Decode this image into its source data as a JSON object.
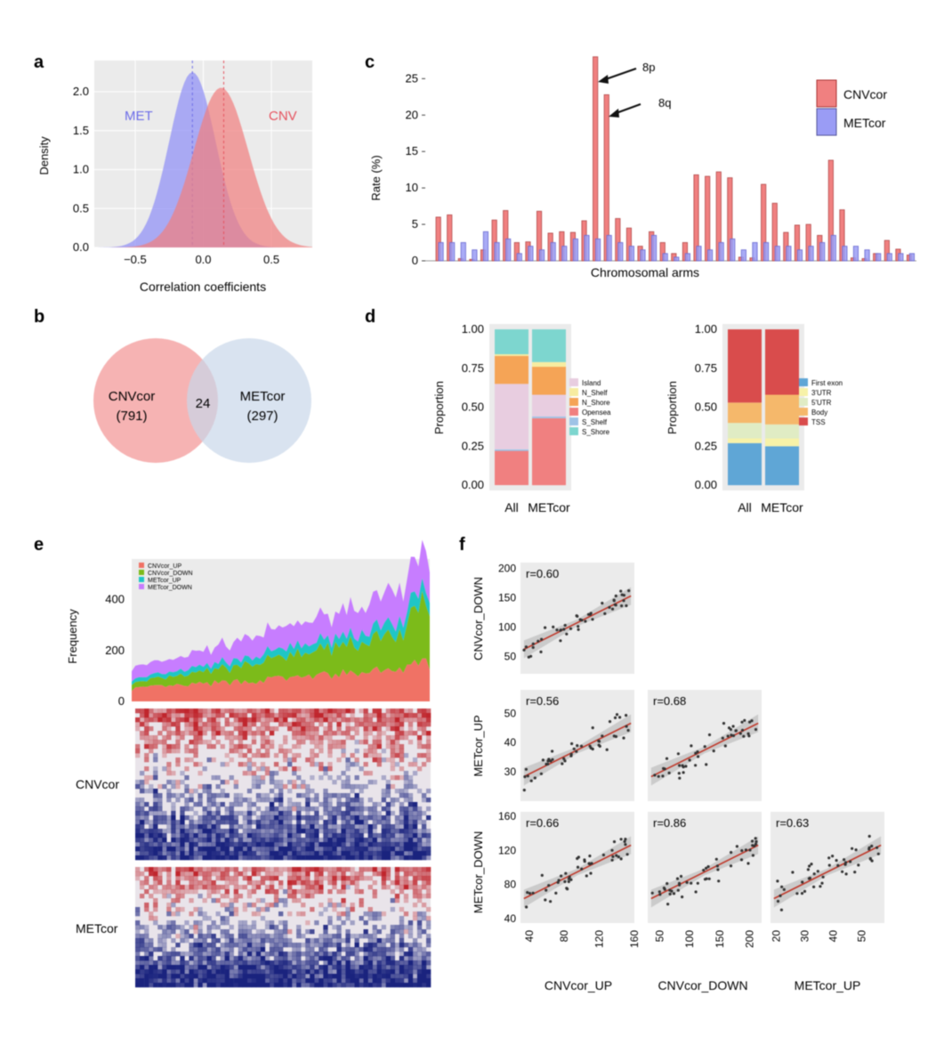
{
  "colors": {
    "cnv": "#f08080",
    "met": "#9a9cf5",
    "venn_cnv": "#f4a6a6",
    "venn_met": "#c9d7ea",
    "panel_bg": "#ebebeb",
    "fit": "#c0392b",
    "heat_red": "#c0262d",
    "heat_blue": "#1a237e"
  },
  "panels": {
    "a": {
      "letter": "a",
      "chart_data": {
        "type": "area",
        "xlabel": "Correlation coefficients",
        "ylabel": "Density",
        "xlim": [
          -0.8,
          0.8
        ],
        "ylim": [
          0,
          2.4
        ],
        "xticks": [
          -0.5,
          0.0,
          0.5
        ],
        "xtick_labels": [
          "−0.5",
          "0.0",
          "0.5"
        ],
        "yticks": [
          0,
          0.5,
          1.0,
          1.5,
          2.0
        ],
        "ytick_labels": [
          "0.0",
          "0.5",
          "1.0",
          "1.5",
          "2.0"
        ],
        "series": [
          {
            "name": "MET",
            "mean": -0.08,
            "sd": 0.17,
            "peak": 2.25,
            "vline": -0.08
          },
          {
            "name": "CNV",
            "mean": 0.13,
            "sd": 0.2,
            "peak": 2.05,
            "vline": 0.15
          }
        ]
      }
    },
    "b": {
      "letter": "b",
      "left_label": "CNVcor",
      "left_count": "(791)",
      "overlap": "24",
      "right_label": "METcor",
      "right_count": "(297)"
    },
    "c": {
      "letter": "c",
      "chart_data": {
        "type": "bar",
        "xlabel": "Chromosomal arms",
        "ylabel": "Rate (%)",
        "ylim": [
          0,
          27
        ],
        "yticks": [
          0,
          5,
          10,
          15,
          20,
          25
        ],
        "annotations": [
          "8p",
          "8q"
        ],
        "series": [
          {
            "name": "CNVcor",
            "values": [
              6.0,
              6.3,
              0.3,
              0.2,
              1.5,
              5.6,
              6.9,
              2.5,
              2.6,
              6.8,
              3.8,
              4.0,
              3.9,
              5.5,
              28.0,
              22.8,
              5.8,
              4.5,
              2.0,
              4.0,
              2.5,
              1.0,
              2.5,
              11.8,
              11.6,
              12.2,
              11.4,
              0.5,
              0.4,
              10.5,
              7.9,
              3.9,
              4.9,
              5.0,
              3.5,
              13.8,
              7.0,
              0.4,
              0.3,
              1.0,
              2.8,
              1.6,
              0.8
            ]
          },
          {
            "name": "METcor",
            "values": [
              2.5,
              2.5,
              2.5,
              1.5,
              4.0,
              2.5,
              3.0,
              1.0,
              2.0,
              1.5,
              2.5,
              2.0,
              3.0,
              3.5,
              3.0,
              3.5,
              2.5,
              2.0,
              1.5,
              3.5,
              1.0,
              0.5,
              1.0,
              2.0,
              1.5,
              2.5,
              3.0,
              1.5,
              2.5,
              2.5,
              2.0,
              2.0,
              1.5,
              2.0,
              2.5,
              3.5,
              2.0,
              2.0,
              1.5,
              1.0,
              1.0,
              1.0,
              1.0
            ]
          }
        ]
      }
    },
    "d_left": {
      "letter": "d",
      "chart_data": {
        "type": "bar",
        "stacked": true,
        "ylabel": "Proportion",
        "categories": [
          "All",
          "METcor"
        ],
        "yticks": [
          "0.00",
          "0.25",
          "0.50",
          "0.75",
          "1.00"
        ],
        "legend": [
          "Island",
          "N_Shelf",
          "N_Shore",
          "Opensea",
          "S_Shelf",
          "S_Shore"
        ],
        "stack_colors": [
          "#e8cde0",
          "#f7eca0",
          "#f5a456",
          "#f08080",
          "#9ec3e6",
          "#7dd6cf"
        ],
        "series": [
          {
            "name": "Opensea",
            "values": [
              0.22,
              0.43
            ]
          },
          {
            "name": "S_Shelf",
            "values": [
              0.01,
              0.01
            ]
          },
          {
            "name": "Island",
            "values": [
              0.42,
              0.14
            ]
          },
          {
            "name": "N_Shore",
            "values": [
              0.18,
              0.18
            ]
          },
          {
            "name": "N_Shelf",
            "values": [
              0.01,
              0.03
            ]
          },
          {
            "name": "S_Shore",
            "values": [
              0.16,
              0.21
            ]
          }
        ]
      }
    },
    "d_right": {
      "chart_data": {
        "type": "bar",
        "stacked": true,
        "ylabel": "Proportion",
        "categories": [
          "All",
          "METcor"
        ],
        "yticks": [
          "0.00",
          "0.25",
          "0.50",
          "0.75",
          "1.00"
        ],
        "legend": [
          "First exon",
          "3'UTR",
          "5'UTR",
          "Body",
          "TSS"
        ],
        "stack_colors": [
          "#5fa6d6",
          "#f7f2a8",
          "#e0ecc4",
          "#f5b86b",
          "#d94c4c"
        ],
        "series": [
          {
            "name": "First exon",
            "values": [
              0.27,
              0.25
            ]
          },
          {
            "name": "3'UTR",
            "values": [
              0.03,
              0.05
            ]
          },
          {
            "name": "5'UTR",
            "values": [
              0.1,
              0.09
            ]
          },
          {
            "name": "Body",
            "values": [
              0.13,
              0.19
            ]
          },
          {
            "name": "TSS",
            "values": [
              0.47,
              0.42
            ]
          }
        ]
      }
    },
    "e": {
      "letter": "e",
      "chart_data": {
        "type": "area",
        "stacked": true,
        "ylabel": "Frequency",
        "ylim": [
          0,
          560
        ],
        "yticks": [
          0,
          200,
          400
        ],
        "legend": [
          "CNVcor_UP",
          "CNVcor_DOWN",
          "METcor_UP",
          "METcor_DOWN"
        ],
        "legend_colors": [
          "#f07265",
          "#7cbb1a",
          "#1fc6c6",
          "#c77dff"
        ],
        "start": [
          50,
          20,
          15,
          45
        ],
        "end": [
          150,
          180,
          55,
          145
        ]
      },
      "heatmap_labels": [
        "CNVcor",
        "METcor"
      ]
    },
    "f": {
      "letter": "f",
      "chart_data": {
        "type": "scatter",
        "cells": [
          {
            "x": "CNVcor_UP",
            "y": "CNVcor_DOWN",
            "r": "r=0.60",
            "xlim": [
              30,
              160
            ],
            "ylim": [
              20,
              210
            ],
            "yticks": [
              50,
              100,
              150,
              200
            ]
          },
          {
            "x": "CNVcor_UP",
            "y": "METcor_UP",
            "r": "r=0.56",
            "xlim": [
              30,
              160
            ],
            "ylim": [
              20,
              58
            ],
            "yticks": [
              30,
              40,
              50
            ]
          },
          {
            "x": "CNVcor_DOWN",
            "y": "METcor_UP",
            "r": "r=0.68",
            "xlim": [
              30,
              220
            ],
            "ylim": [
              20,
              58
            ]
          },
          {
            "x": "CNVcor_UP",
            "y": "METcor_DOWN",
            "r": "r=0.66",
            "xlim": [
              30,
              160
            ],
            "ylim": [
              35,
              165
            ],
            "yticks": [
              40,
              80,
              120,
              160
            ],
            "xticks": [
              40,
              80,
              120,
              160
            ]
          },
          {
            "x": "CNVcor_DOWN",
            "y": "METcor_DOWN",
            "r": "r=0.86",
            "xlim": [
              30,
              220
            ],
            "ylim": [
              35,
              165
            ],
            "xticks": [
              50,
              100,
              150,
              200
            ]
          },
          {
            "x": "METcor_UP",
            "y": "METcor_DOWN",
            "r": "r=0.63",
            "xlim": [
              18,
              58
            ],
            "ylim": [
              35,
              165
            ],
            "xticks": [
              20,
              30,
              40,
              50
            ]
          }
        ],
        "xlabels": [
          "CNVcor_UP",
          "CNVcor_DOWN",
          "METcor_UP"
        ],
        "ylabels": [
          "CNVcor_DOWN",
          "METcor_UP",
          "METcor_DOWN"
        ]
      }
    }
  }
}
